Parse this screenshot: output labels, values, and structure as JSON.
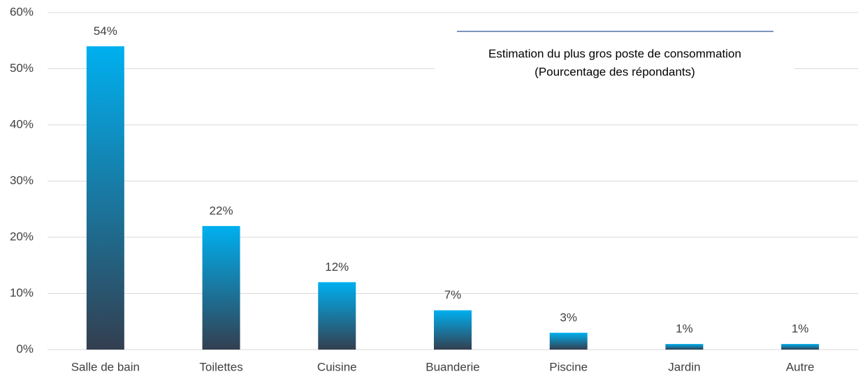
{
  "chart_data": {
    "type": "bar",
    "title": "Estimation du plus gros poste de consommation",
    "subtitle": "(Pourcentage des répondants)",
    "categories": [
      "Salle de bain",
      "Toilettes",
      "Cuisine",
      "Buanderie",
      "Piscine",
      "Jardin",
      "Autre"
    ],
    "values": [
      54,
      22,
      12,
      7,
      3,
      1,
      1
    ],
    "value_labels": [
      "54%",
      "22%",
      "12%",
      "7%",
      "3%",
      "1%",
      "1%"
    ],
    "color": [
      "#00b0f0",
      "#333f50"
    ],
    "ylim": [
      0,
      60
    ],
    "yticks": [
      {
        "value": 0,
        "label": "0%"
      },
      {
        "value": 10,
        "label": "10%"
      },
      {
        "value": 20,
        "label": "20%"
      },
      {
        "value": 30,
        "label": "30%"
      },
      {
        "value": 40,
        "label": "40%"
      },
      {
        "value": 50,
        "label": "50%"
      },
      {
        "value": 60,
        "label": "60%"
      }
    ],
    "grid": true
  }
}
